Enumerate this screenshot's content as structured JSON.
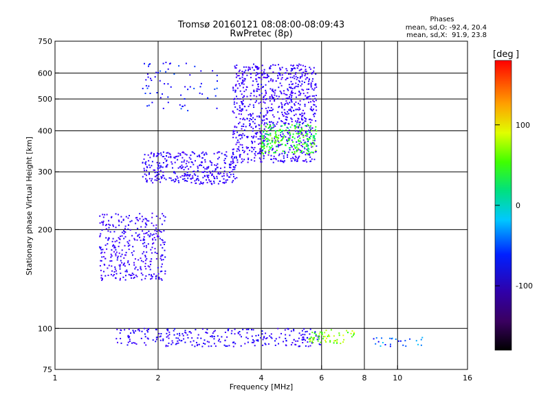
{
  "chart_data": {
    "type": "scatter",
    "title": "Tromsø 20160121 08:08:00-08:09:43",
    "subtitle": "RwPretec (8p)",
    "xlabel": "Frequency [MHz]",
    "ylabel": "Stationary phase Virtual Height [km]",
    "x_scale": "log",
    "y_scale": "log",
    "xlim": [
      1,
      16
    ],
    "ylim": [
      75,
      750
    ],
    "x_ticks": [
      1,
      2,
      4,
      6,
      8,
      10,
      16
    ],
    "y_ticks": [
      75,
      100,
      200,
      300,
      400,
      500,
      600,
      750
    ],
    "grid_x": [
      2,
      4,
      6,
      8,
      10
    ],
    "grid_y": [
      100,
      200,
      300,
      400,
      500,
      600
    ],
    "grid": true,
    "phase_info": {
      "title": "Phases",
      "line_o": "mean, sd,O: -92.4, 20.4",
      "line_x": "mean, sd,X:  91.9, 23.8"
    },
    "colorbar": {
      "label": "[deg",
      "range": [
        -180,
        180
      ],
      "ticks": [
        100,
        0,
        -100
      ],
      "colormap": "rainbow (black-purple-blue-cyan-green-yellow-red)"
    },
    "regions": [
      {
        "name": "",
        "f_range": [
          3.3,
          5.8
        ],
        "h_range": [
          320,
          640
        ],
        "phase": -110,
        "n": 900
      },
      {
        "name": "",
        "f_range": [
          1.8,
          3.4
        ],
        "h_range": [
          275,
          345
        ],
        "phase": -105,
        "n": 350
      },
      {
        "name": "",
        "f_range": [
          1.35,
          2.1
        ],
        "h_range": [
          140,
          225
        ],
        "phase": -110,
        "n": 350
      },
      {
        "name": "",
        "f_range": [
          4.0,
          5.8
        ],
        "h_range": [
          340,
          420
        ],
        "phase": 60,
        "n": 200
      },
      {
        "name": "",
        "f_range": [
          1.8,
          3.0
        ],
        "h_range": [
          460,
          650
        ],
        "phase": -70,
        "n": 70
      },
      {
        "name": "",
        "f_range": [
          1.5,
          6.0
        ],
        "h_range": [
          88,
          100
        ],
        "phase": -100,
        "n": 280
      },
      {
        "name": "",
        "f_range": [
          5.5,
          7.5
        ],
        "h_range": [
          90,
          100
        ],
        "phase": 90,
        "n": 60
      },
      {
        "name": "",
        "f_range": [
          8.3,
          12
        ],
        "h_range": [
          88,
          94
        ],
        "phase": -40,
        "n": 25
      }
    ]
  }
}
